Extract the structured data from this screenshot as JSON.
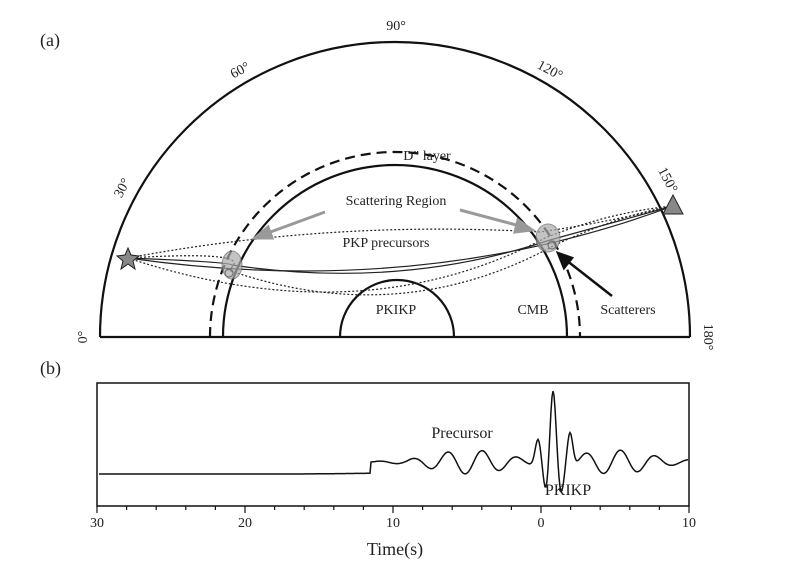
{
  "figure": {
    "panel_a": {
      "label": "(a)",
      "angles": [
        "0°",
        "30°",
        "60°",
        "90°",
        "120°",
        "150°",
        "180°"
      ],
      "labels": {
        "d_layer": "D″ layer",
        "scattering_region": "Scattering Region",
        "pkp_precursors": "PKP precursors",
        "pkikp": "PKIKP",
        "cmb": "CMB",
        "scatterers": "Scatterers"
      }
    },
    "panel_b": {
      "label": "(b)",
      "precursor": "Precursor",
      "pkikp": "PKIKP",
      "xlabel": "Time(s)",
      "xtick_labels": [
        "30",
        "20",
        "10",
        "0",
        "10"
      ]
    }
  }
}
